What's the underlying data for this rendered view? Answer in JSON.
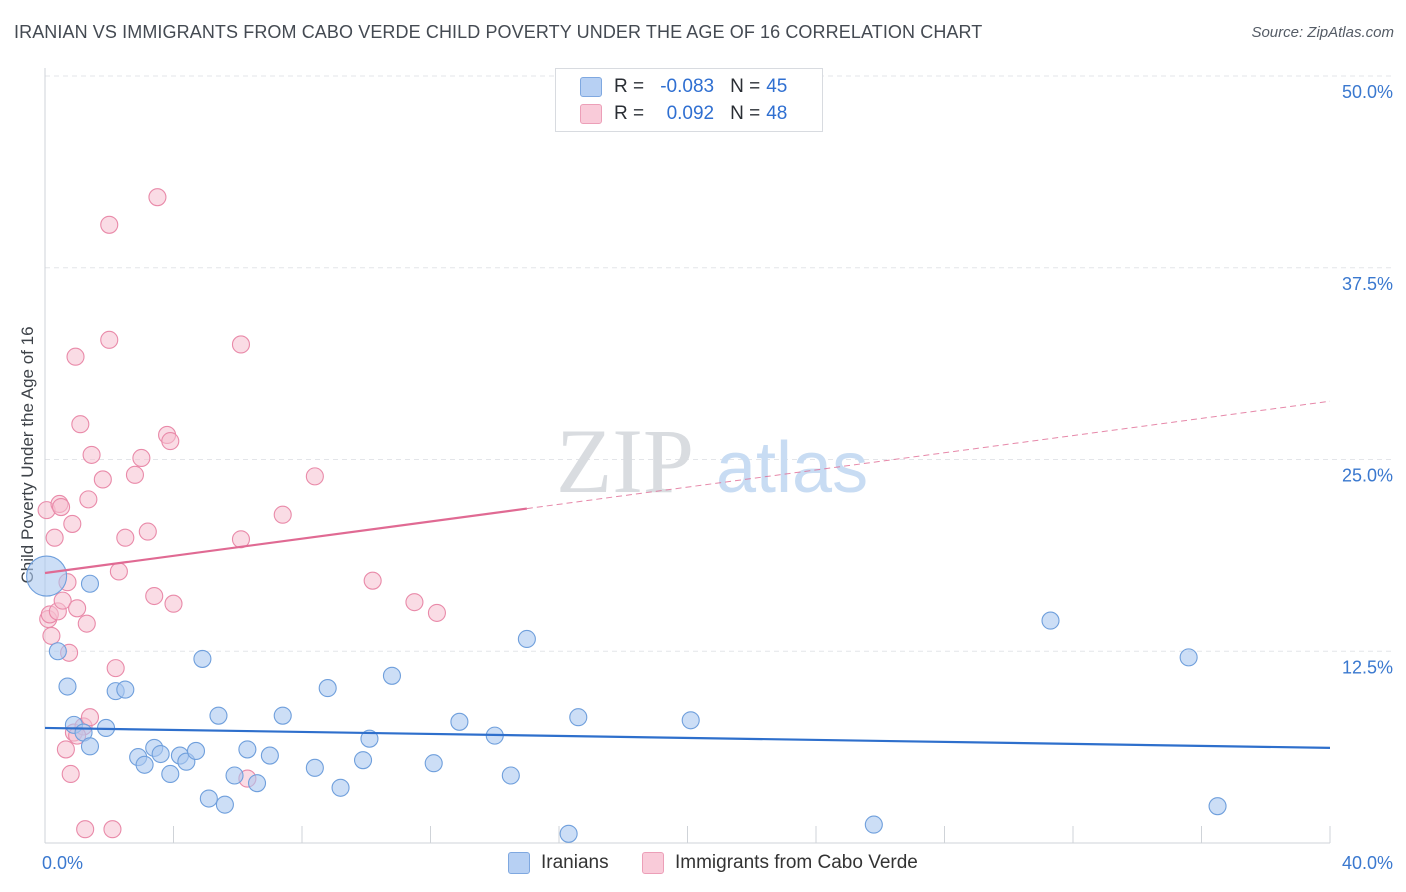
{
  "header": {
    "title": "IRANIAN VS IMMIGRANTS FROM CABO VERDE CHILD POVERTY UNDER THE AGE OF 16 CORRELATION CHART",
    "source": "Source: ZipAtlas.com"
  },
  "watermark": {
    "zip": "ZIP",
    "atlas": "atlas"
  },
  "legend": {
    "rows": [
      {
        "r_label": "R =",
        "r_value": "-0.083",
        "n_label": "N =",
        "n_value": "45"
      },
      {
        "r_label": "R =",
        "r_value": "0.092",
        "n_label": "N =",
        "n_value": "48"
      }
    ]
  },
  "colors": {
    "blue_fill": "#aac8f0",
    "blue_stroke": "#6f9fdc",
    "blue_line": "#2e6fcc",
    "pink_fill": "#f6bfd0",
    "pink_stroke": "#e98aa9",
    "pink_line": "#e06a93",
    "tick_label": "#3a78cf",
    "grid": "#e3e5e9"
  },
  "chart_data": {
    "type": "scatter",
    "title": "IRANIAN VS IMMIGRANTS FROM CABO VERDE CHILD POVERTY UNDER THE AGE OF 16 CORRELATION CHART",
    "xlabel": "",
    "ylabel": "Child Poverty Under the Age of 16",
    "xlim": [
      0,
      40
    ],
    "ylim": [
      0,
      50
    ],
    "x_tick_labels": [
      "0.0%",
      "40.0%"
    ],
    "y_ticks": [
      12.5,
      25.0,
      37.5,
      50.0
    ],
    "y_tick_labels": [
      "12.5%",
      "25.0%",
      "37.5%",
      "50.0%"
    ],
    "grid": "horizontal dashed",
    "legend_position": "bottom-center",
    "series": [
      {
        "name": "Iranians",
        "color": "#aac8f0",
        "r": -0.083,
        "n": 45,
        "trend": {
          "x": [
            0,
            40
          ],
          "y": [
            7.5,
            6.2
          ]
        },
        "points": [
          {
            "x": 0.05,
            "y": 17.4,
            "big": true
          },
          {
            "x": 0.4,
            "y": 12.5
          },
          {
            "x": 0.7,
            "y": 10.2
          },
          {
            "x": 0.9,
            "y": 7.7
          },
          {
            "x": 1.2,
            "y": 7.2
          },
          {
            "x": 1.4,
            "y": 6.3
          },
          {
            "x": 1.9,
            "y": 7.5
          },
          {
            "x": 1.4,
            "y": 16.9
          },
          {
            "x": 2.2,
            "y": 9.9
          },
          {
            "x": 2.5,
            "y": 10.0
          },
          {
            "x": 2.9,
            "y": 5.6
          },
          {
            "x": 3.1,
            "y": 5.1
          },
          {
            "x": 3.4,
            "y": 6.2
          },
          {
            "x": 3.6,
            "y": 5.8
          },
          {
            "x": 3.9,
            "y": 4.5
          },
          {
            "x": 4.2,
            "y": 5.7
          },
          {
            "x": 4.4,
            "y": 5.3
          },
          {
            "x": 4.7,
            "y": 6.0
          },
          {
            "x": 4.9,
            "y": 12.0
          },
          {
            "x": 5.1,
            "y": 2.9
          },
          {
            "x": 5.4,
            "y": 8.3
          },
          {
            "x": 5.6,
            "y": 2.5
          },
          {
            "x": 5.9,
            "y": 4.4
          },
          {
            "x": 6.3,
            "y": 6.1
          },
          {
            "x": 6.6,
            "y": 3.9
          },
          {
            "x": 7.0,
            "y": 5.7
          },
          {
            "x": 7.4,
            "y": 8.3
          },
          {
            "x": 8.4,
            "y": 4.9
          },
          {
            "x": 8.8,
            "y": 10.1
          },
          {
            "x": 9.2,
            "y": 3.6
          },
          {
            "x": 9.9,
            "y": 5.4
          },
          {
            "x": 10.1,
            "y": 6.8
          },
          {
            "x": 10.8,
            "y": 10.9
          },
          {
            "x": 12.1,
            "y": 5.2
          },
          {
            "x": 12.9,
            "y": 7.9
          },
          {
            "x": 14.0,
            "y": 7.0
          },
          {
            "x": 14.5,
            "y": 4.4
          },
          {
            "x": 15.0,
            "y": 13.3
          },
          {
            "x": 16.3,
            "y": 0.6
          },
          {
            "x": 16.6,
            "y": 8.2
          },
          {
            "x": 20.1,
            "y": 8.0
          },
          {
            "x": 25.8,
            "y": 1.2
          },
          {
            "x": 31.3,
            "y": 14.5
          },
          {
            "x": 35.6,
            "y": 12.1
          },
          {
            "x": 36.5,
            "y": 2.4
          }
        ]
      },
      {
        "name": "Immigrants from Cabo Verde",
        "color": "#f6bfd0",
        "r": 0.092,
        "n": 48,
        "trend": {
          "x": [
            0,
            15
          ],
          "y": [
            17.6,
            21.8
          ]
        },
        "trend_extension": {
          "x": [
            15,
            40
          ],
          "y": [
            21.8,
            28.8
          ]
        },
        "points": [
          {
            "x": 0.05,
            "y": 21.7
          },
          {
            "x": 0.1,
            "y": 14.6
          },
          {
            "x": 0.15,
            "y": 14.9
          },
          {
            "x": 0.2,
            "y": 13.5
          },
          {
            "x": 0.3,
            "y": 19.9
          },
          {
            "x": 0.4,
            "y": 15.1
          },
          {
            "x": 0.45,
            "y": 22.1
          },
          {
            "x": 0.5,
            "y": 21.9
          },
          {
            "x": 0.55,
            "y": 15.8
          },
          {
            "x": 0.65,
            "y": 6.1
          },
          {
            "x": 0.7,
            "y": 17.0
          },
          {
            "x": 0.75,
            "y": 12.4
          },
          {
            "x": 0.8,
            "y": 4.5
          },
          {
            "x": 0.85,
            "y": 20.8
          },
          {
            "x": 0.9,
            "y": 7.2
          },
          {
            "x": 0.95,
            "y": 31.7
          },
          {
            "x": 1.0,
            "y": 15.3
          },
          {
            "x": 1.1,
            "y": 27.3
          },
          {
            "x": 1.2,
            "y": 7.6
          },
          {
            "x": 1.25,
            "y": 0.9
          },
          {
            "x": 1.3,
            "y": 14.3
          },
          {
            "x": 1.35,
            "y": 22.4
          },
          {
            "x": 1.4,
            "y": 8.2
          },
          {
            "x": 1.45,
            "y": 25.3
          },
          {
            "x": 1.8,
            "y": 23.7
          },
          {
            "x": 2.0,
            "y": 40.3
          },
          {
            "x": 2.0,
            "y": 32.8
          },
          {
            "x": 2.1,
            "y": 0.9
          },
          {
            "x": 2.2,
            "y": 11.4
          },
          {
            "x": 2.3,
            "y": 17.7
          },
          {
            "x": 2.5,
            "y": 19.9
          },
          {
            "x": 2.8,
            "y": 24.0
          },
          {
            "x": 3.0,
            "y": 25.1
          },
          {
            "x": 3.2,
            "y": 20.3
          },
          {
            "x": 3.4,
            "y": 16.1
          },
          {
            "x": 3.5,
            "y": 42.1
          },
          {
            "x": 3.8,
            "y": 26.6
          },
          {
            "x": 3.9,
            "y": 26.2
          },
          {
            "x": 4.0,
            "y": 15.6
          },
          {
            "x": 6.1,
            "y": 32.5
          },
          {
            "x": 6.1,
            "y": 19.8
          },
          {
            "x": 6.3,
            "y": 4.2
          },
          {
            "x": 7.4,
            "y": 21.4
          },
          {
            "x": 8.4,
            "y": 23.9
          },
          {
            "x": 10.2,
            "y": 17.1
          },
          {
            "x": 11.5,
            "y": 15.7
          },
          {
            "x": 12.2,
            "y": 15.0
          },
          {
            "x": 1.0,
            "y": 7.0
          }
        ]
      }
    ]
  }
}
